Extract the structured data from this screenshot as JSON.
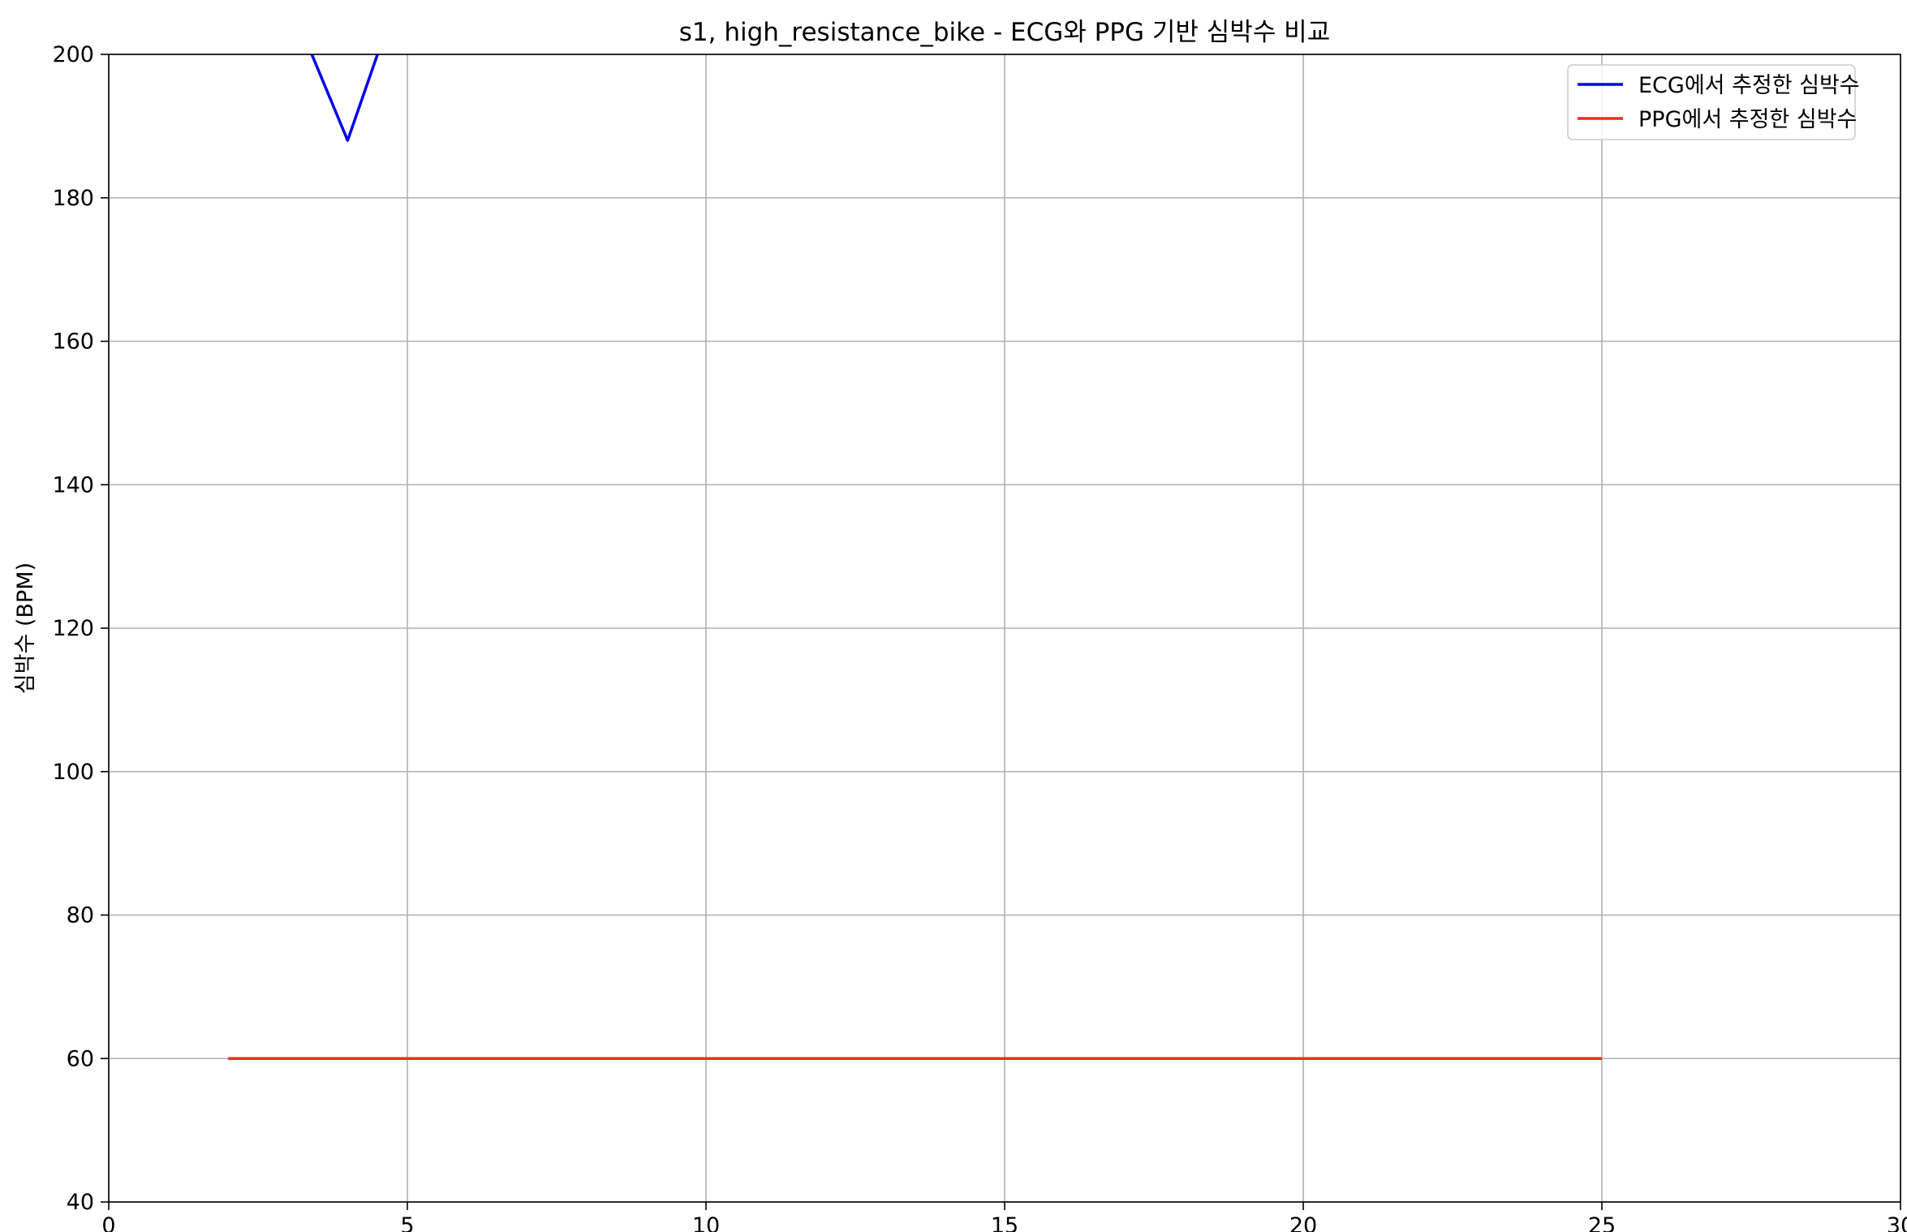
{
  "chart_data": {
    "type": "line",
    "title": "s1, high_resistance_bike - ECG와 PPG 기반 심박수 비교",
    "xlabel": "",
    "ylabel": "심박수 (BPM)",
    "xlim": [
      0,
      30
    ],
    "ylim": [
      40,
      200
    ],
    "xticks": [
      0,
      5,
      10,
      15,
      20,
      25,
      30
    ],
    "yticks": [
      40,
      60,
      80,
      100,
      120,
      140,
      160,
      180,
      200
    ],
    "grid": true,
    "legend_position": "top-right",
    "series": [
      {
        "name": "ECG에서 추정한 심박수",
        "color": "#0000ee",
        "x": [
          3.0,
          4.0,
          5.0
        ],
        "y": [
          208,
          188,
          212
        ]
      },
      {
        "name": "PPG에서 추정한 심박수",
        "color": "#e8301c",
        "x": [
          2,
          25
        ],
        "y": [
          60,
          60
        ]
      }
    ]
  }
}
